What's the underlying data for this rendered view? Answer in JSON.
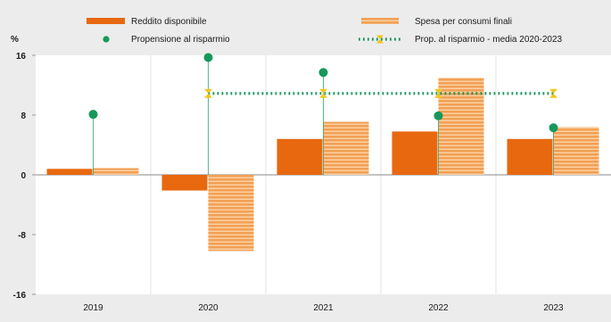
{
  "chart_data": {
    "type": "bar",
    "unit_label": "%",
    "categories": [
      "2019",
      "2020",
      "2021",
      "2022",
      "2023"
    ],
    "ylim": [
      -16,
      16
    ],
    "yticks": [
      "16",
      "8",
      "0",
      "-8",
      "-16"
    ],
    "series": [
      {
        "name": "Reddito disponibile",
        "kind": "bar",
        "color": "#e8680f",
        "values": [
          0.8,
          -2.1,
          4.8,
          5.8,
          4.8
        ]
      },
      {
        "name": "Spesa per consumi finali",
        "kind": "bar",
        "pattern": "striped",
        "color": "#f2a055",
        "values": [
          0.9,
          -10.2,
          7.1,
          13.0,
          6.4
        ]
      },
      {
        "name": "Propensione al risparmio",
        "kind": "dot",
        "color": "#17985b",
        "values": [
          8.1,
          15.7,
          13.7,
          7.9,
          6.3
        ]
      },
      {
        "name": "Prop. al risparmio - media 2020-2023",
        "kind": "dotted-line",
        "color": "#17985b",
        "marker_color": "#f2c51b",
        "values": [
          10.9,
          10.9,
          10.9,
          10.9,
          10.9
        ]
      }
    ],
    "legend": {
      "placement": "top",
      "items": [
        "Reddito disponibile",
        "Spesa per consumi finali",
        "Propensione al risparmio",
        "Prop. al risparmio - media 2020-2023"
      ]
    },
    "grid": "vertical separators between categories"
  }
}
